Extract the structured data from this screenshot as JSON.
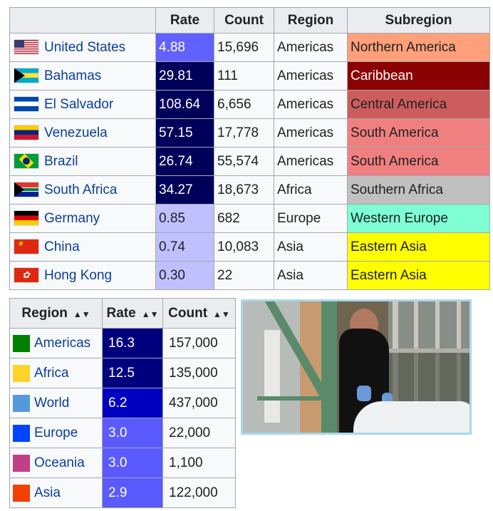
{
  "country_table": {
    "headers": [
      "",
      "Rate",
      "Count",
      "Region",
      "Subregion"
    ],
    "rows": [
      {
        "country": "United States",
        "flag": "us-flag-icon",
        "rate": "4.88",
        "rate_color": "#6161ff",
        "count": "15,696",
        "region": "Americas",
        "subregion": "Northern America",
        "subregion_color": "#ffa07a",
        "subregion_text": "#202122"
      },
      {
        "country": "Bahamas",
        "flag": "bahamas-flag-icon",
        "rate": "29.81",
        "rate_color": "#00005a",
        "count": "111",
        "region": "Americas",
        "subregion": "Caribbean",
        "subregion_color": "#8b0000",
        "subregion_text": "#ffffff"
      },
      {
        "country": "El Salvador",
        "flag": "el-salvador-flag-icon",
        "rate": "108.64",
        "rate_color": "#00005a",
        "count": "6,656",
        "region": "Americas",
        "subregion": "Central America",
        "subregion_color": "#cd5c5c",
        "subregion_text": "#202122"
      },
      {
        "country": "Venezuela",
        "flag": "venezuela-flag-icon",
        "rate": "57.15",
        "rate_color": "#00005a",
        "count": "17,778",
        "region": "Americas",
        "subregion": "South America",
        "subregion_color": "#f08080",
        "subregion_text": "#202122"
      },
      {
        "country": "Brazil",
        "flag": "brazil-flag-icon",
        "rate": "26.74",
        "rate_color": "#00005a",
        "count": "55,574",
        "region": "Americas",
        "subregion": "South America",
        "subregion_color": "#f08080",
        "subregion_text": "#202122"
      },
      {
        "country": "South Africa",
        "flag": "south-africa-flag-icon",
        "rate": "34.27",
        "rate_color": "#00005a",
        "count": "18,673",
        "region": "Africa",
        "subregion": "Southern Africa",
        "subregion_color": "#c0c0c0",
        "subregion_text": "#202122"
      },
      {
        "country": "Germany",
        "flag": "germany-flag-icon",
        "rate": "0.85",
        "rate_color": "#c0c0ff",
        "count": "682",
        "region": "Europe",
        "subregion": "Western Europe",
        "subregion_color": "#7fffd4",
        "subregion_text": "#202122"
      },
      {
        "country": "China",
        "flag": "china-flag-icon",
        "rate": "0.74",
        "rate_color": "#c0c0ff",
        "count": "10,083",
        "region": "Asia",
        "subregion": "Eastern Asia",
        "subregion_color": "#ffff00",
        "subregion_text": "#202122"
      },
      {
        "country": "Hong Kong",
        "flag": "hong-kong-flag-icon",
        "rate": "0.30",
        "rate_color": "#c0c0ff",
        "count": "22",
        "region": "Asia",
        "subregion": "Eastern Asia",
        "subregion_color": "#ffff00",
        "subregion_text": "#202122"
      }
    ]
  },
  "region_table": {
    "headers": [
      "Region",
      "Rate",
      "Count"
    ],
    "sort_icon": "▲▼",
    "rows": [
      {
        "region": "Americas",
        "swatch": "#008000",
        "rate": "16.3",
        "rate_color": "#00007f",
        "count": "157,000"
      },
      {
        "region": "Africa",
        "swatch": "#ffd42a",
        "rate": "12.5",
        "rate_color": "#00007f",
        "count": "135,000"
      },
      {
        "region": "World",
        "swatch": "#5599dd",
        "rate": "6.2",
        "rate_color": "#0000c0",
        "count": "437,000"
      },
      {
        "region": "Europe",
        "swatch": "#0044ff",
        "rate": "3.0",
        "rate_color": "#5a5aff",
        "count": "22,000"
      },
      {
        "region": "Oceania",
        "swatch": "#c03f86",
        "rate": "3.0",
        "rate_color": "#5a5aff",
        "count": "1,100"
      },
      {
        "region": "Asia",
        "swatch": "#f24000",
        "rate": "2.9",
        "rate_color": "#5a5aff",
        "count": "122,000"
      }
    ]
  }
}
